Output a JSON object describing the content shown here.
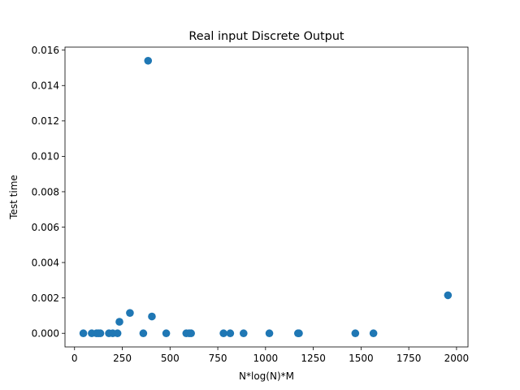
{
  "chart_data": {
    "type": "scatter",
    "title": "Real input Discrete Output",
    "xlabel": "N*log(N)*M",
    "ylabel": "Test time",
    "xlim": [
      -50,
      2060
    ],
    "ylim": [
      -0.00077,
      0.01617
    ],
    "x_ticks": [
      0,
      250,
      500,
      750,
      1000,
      1250,
      1500,
      1750,
      2000
    ],
    "x_tick_labels": [
      "0",
      "250",
      "500",
      "750",
      "1000",
      "1250",
      "1500",
      "1750",
      "2000"
    ],
    "y_ticks": [
      0.0,
      0.002,
      0.004,
      0.006,
      0.008,
      0.01,
      0.012,
      0.014,
      0.016
    ],
    "y_tick_labels": [
      "0.000",
      "0.002",
      "0.004",
      "0.006",
      "0.008",
      "0.010",
      "0.012",
      "0.014",
      "0.016"
    ],
    "grid": false,
    "marker_color": "#1f77b4",
    "x": [
      46,
      90,
      115,
      125,
      135,
      180,
      200,
      225,
      235,
      290,
      360,
      385,
      405,
      480,
      585,
      600,
      610,
      780,
      815,
      885,
      1020,
      1170,
      1175,
      1470,
      1565,
      1955
    ],
    "y": [
      0.0,
      0.0,
      0.0,
      0.0,
      0.0,
      0.0,
      0.0,
      0.0,
      0.00065,
      0.00115,
      0.0,
      0.0154,
      0.00095,
      0.0,
      0.0,
      0.0,
      0.0,
      0.0,
      0.0,
      0.0,
      0.0,
      0.0,
      0.0,
      0.0,
      0.0,
      0.00215
    ]
  }
}
